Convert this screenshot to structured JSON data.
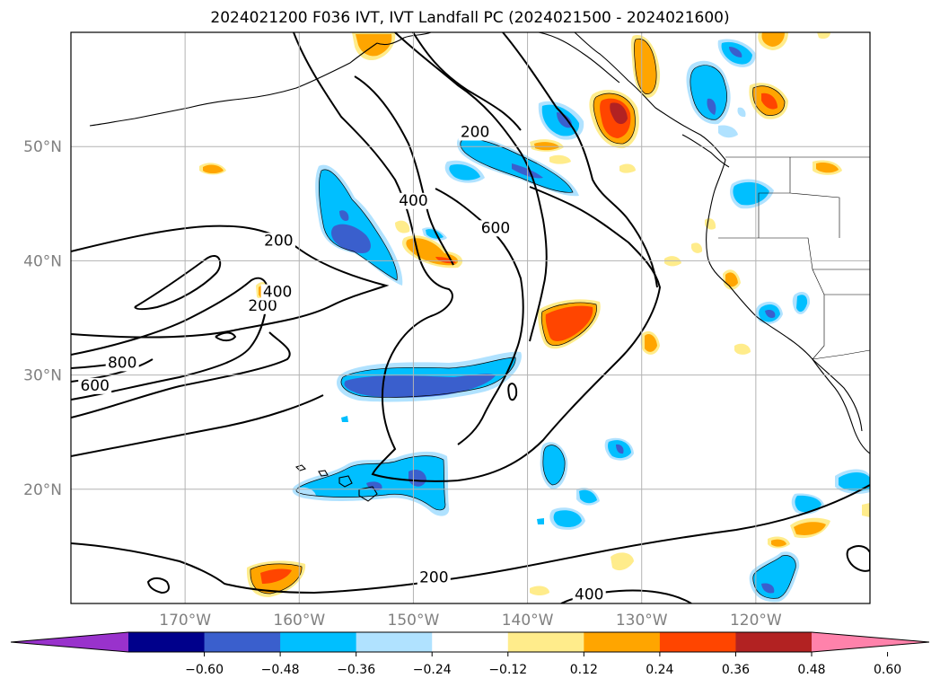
{
  "title": "2024021200 F036 IVT, IVT Landfall PC (2024021500 - 2024021600)",
  "map": {
    "projection": "PlateCarree",
    "lon_range": [
      -180,
      -110
    ],
    "lat_range": [
      10,
      60
    ],
    "lat_ticks": [
      {
        "value": 20,
        "label": "20°N"
      },
      {
        "value": 30,
        "label": "30°N"
      },
      {
        "value": 40,
        "label": "40°N"
      },
      {
        "value": 50,
        "label": "50°N"
      }
    ],
    "lon_ticks": [
      {
        "value": -170,
        "label": "170°W"
      },
      {
        "value": -160,
        "label": "160°W"
      },
      {
        "value": -150,
        "label": "150°W"
      },
      {
        "value": -140,
        "label": "140°W"
      },
      {
        "value": -130,
        "label": "130°W"
      },
      {
        "value": -120,
        "label": "120°W"
      }
    ],
    "gridlines": true
  },
  "ivt_contours": {
    "variable": "IVT",
    "levels": [
      200,
      400,
      600,
      800
    ],
    "labels": [
      {
        "text": "200",
        "lon": -163.2,
        "lat": 35.8
      },
      {
        "text": "200",
        "lon": -161.8,
        "lat": 41.5
      },
      {
        "text": "400",
        "lon": -161.9,
        "lat": 37.0
      },
      {
        "text": "800",
        "lon": -175.5,
        "lat": 30.8
      },
      {
        "text": "600",
        "lon": -177.9,
        "lat": 28.8
      },
      {
        "text": "400",
        "lon": -150.0,
        "lat": 45.0
      },
      {
        "text": "200",
        "lon": -144.6,
        "lat": 51.0
      },
      {
        "text": "600",
        "lon": -142.8,
        "lat": 42.6
      },
      {
        "text": "200",
        "lon": -148.2,
        "lat": 12.0
      },
      {
        "text": "400",
        "lon": -134.6,
        "lat": 10.5
      }
    ]
  },
  "colorbar": {
    "variable": "IVT Landfall PC",
    "extend": "both",
    "colors": [
      "#9932cc",
      "#00008b",
      "#3a5fcd",
      "#00bfff",
      "#b0e2ff",
      "#ffffff",
      "#ffec8b",
      "#ffa500",
      "#ff4500",
      "#b22222",
      "#ff82ab"
    ],
    "tick_labels": [
      "−0.60",
      "−0.48",
      "−0.36",
      "−0.24",
      "−0.12",
      "0.12",
      "0.24",
      "0.36",
      "0.48",
      "0.60"
    ]
  },
  "pc_features": [
    {
      "sign": "negative",
      "peak": -0.48,
      "region": "band near 30N, 158W-143W"
    },
    {
      "sign": "negative",
      "peak": -0.48,
      "region": "patch near 43N, 157W-152W"
    },
    {
      "sign": "negative",
      "peak": -0.36,
      "region": "band near 48N, 146W-136W"
    },
    {
      "sign": "positive",
      "peak": 0.48,
      "region": "near 54N, 131W"
    },
    {
      "sign": "positive",
      "peak": 0.36,
      "region": "near 34N, 136W"
    },
    {
      "sign": "positive",
      "peak": 0.36,
      "region": "near 12N, 163W"
    }
  ]
}
